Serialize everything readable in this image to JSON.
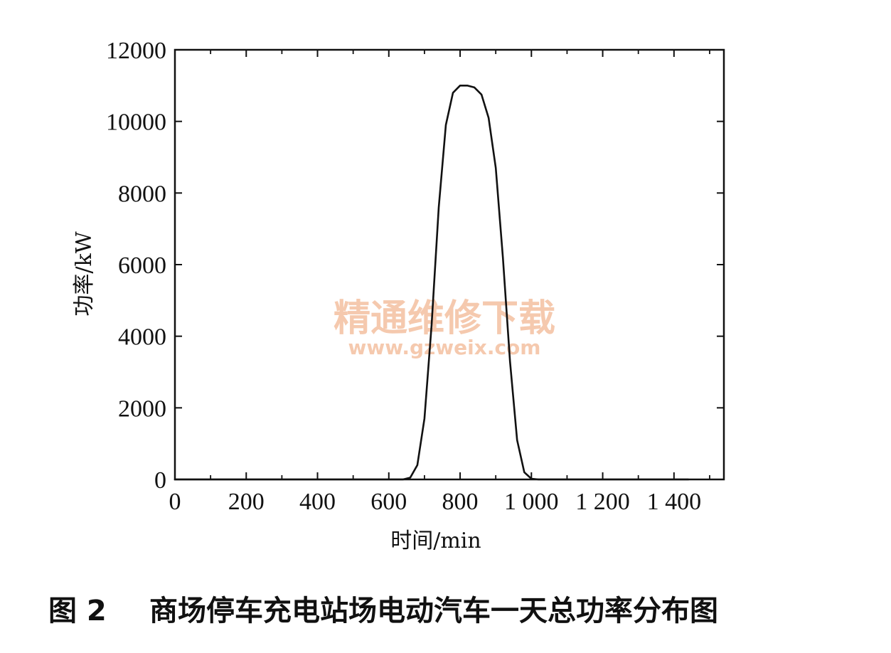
{
  "chart_data": {
    "type": "line",
    "title": "",
    "xlabel": "时间/min",
    "ylabel": "功率/kW",
    "xlim": [
      0,
      1540
    ],
    "ylim": [
      0,
      12000
    ],
    "x_ticks": [
      0,
      200,
      400,
      600,
      800,
      1000,
      1200,
      1400
    ],
    "x_tick_labels": [
      "0",
      "200",
      "400",
      "600",
      "800",
      "1 000",
      "1 200",
      "1 400"
    ],
    "y_ticks": [
      0,
      2000,
      4000,
      6000,
      8000,
      10000,
      12000
    ],
    "y_tick_labels": [
      "0",
      "2000",
      "4000",
      "6000",
      "8000",
      "10000",
      "12000"
    ],
    "grid": false,
    "series": [
      {
        "color": "#111111",
        "x": [
          0,
          600,
          640,
          660,
          680,
          700,
          720,
          740,
          760,
          780,
          800,
          820,
          840,
          860,
          880,
          900,
          920,
          940,
          960,
          980,
          1000,
          1020,
          1060,
          1440
        ],
        "y": [
          0,
          0,
          0,
          50,
          400,
          1700,
          4300,
          7600,
          9900,
          10800,
          11000,
          11000,
          10950,
          10750,
          10100,
          8700,
          6200,
          3300,
          1100,
          200,
          20,
          0,
          0,
          0
        ]
      }
    ]
  },
  "watermark": {
    "main": "精通维修下载",
    "url": "www.gzweix.com"
  },
  "caption": {
    "label": "图 2",
    "text": "商场停车充电站场电动汽车一天总功率分布图"
  }
}
